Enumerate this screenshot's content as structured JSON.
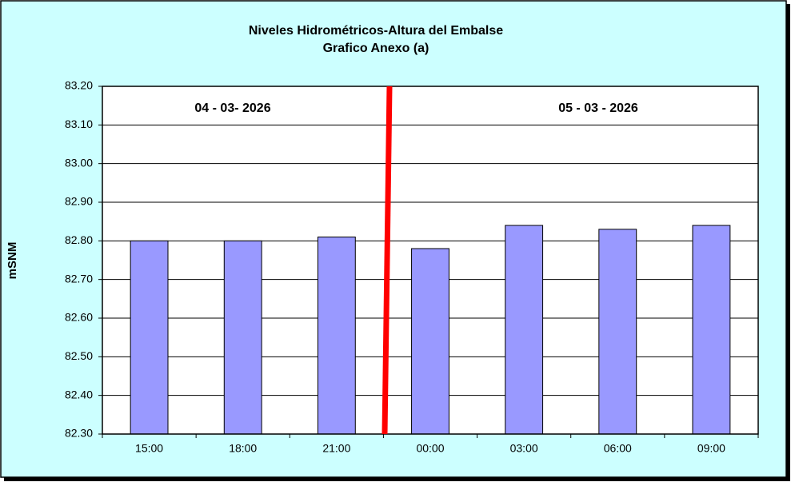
{
  "chart_data": {
    "type": "bar",
    "title": "Niveles Hidrométricos-Altura del Embalse",
    "subtitle": "Grafico Anexo (a)",
    "y_label": "mSNM",
    "annotations": [
      "04 - 03- 2026",
      "05 - 03 - 2026"
    ],
    "categories": [
      "15:00",
      "18:00",
      "21:00",
      "00:00",
      "03:00",
      "06:00",
      "09:00"
    ],
    "values": [
      82.8,
      82.8,
      82.81,
      82.78,
      82.84,
      82.83,
      82.84
    ],
    "color": "#9999ff",
    "ylim": [
      82.3,
      83.2
    ],
    "yticks": [
      {
        "value": 82.3,
        "label": "82.30"
      },
      {
        "value": 82.4,
        "label": "82.40"
      },
      {
        "value": 82.5,
        "label": "82.50"
      },
      {
        "value": 82.6,
        "label": "82.60"
      },
      {
        "value": 82.7,
        "label": "82.70"
      },
      {
        "value": 82.8,
        "label": "82.80"
      },
      {
        "value": 82.9,
        "label": "82.90"
      },
      {
        "value": 83.0,
        "label": "83.00"
      },
      {
        "value": 83.1,
        "label": "83.10"
      },
      {
        "value": 83.2,
        "label": "83.20"
      }
    ],
    "grid": true
  }
}
